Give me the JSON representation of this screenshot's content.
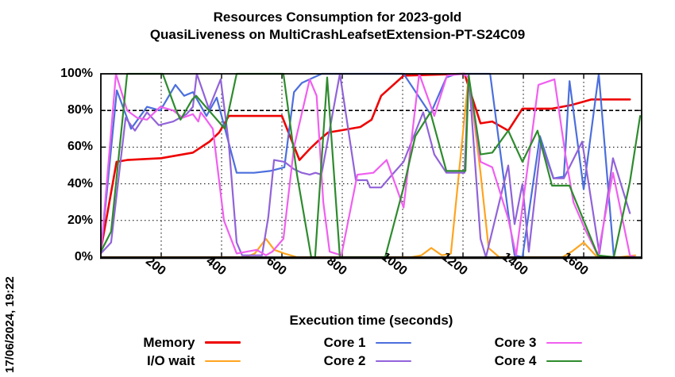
{
  "title": {
    "line1": "Resources Consumption for 2023-gold",
    "line2": "QuasiLiveness on MultiCrashLeafsetExtension-PT-S24C09"
  },
  "timestamp_label": "17/06/2024, 19:22",
  "chart_data": {
    "type": "line",
    "title": "Resources Consumption for 2023-gold — QuasiLiveness on MultiCrashLeafsetExtension-PT-S24C09",
    "xlabel": "Execution time (seconds)",
    "ylabel": "",
    "xlim": [
      0,
      1792
    ],
    "ylim": [
      0,
      100
    ],
    "grid": true,
    "legend_position": "bottom",
    "x_ticks": [
      200,
      400,
      600,
      800,
      1000,
      1200,
      1400,
      1600
    ],
    "y_ticks": [
      {
        "v": 0,
        "label": "0%"
      },
      {
        "v": 20,
        "label": "20%"
      },
      {
        "v": 40,
        "label": "40%"
      },
      {
        "v": 60,
        "label": "60%"
      },
      {
        "v": 80,
        "label": "80%"
      },
      {
        "v": 100,
        "label": "100%"
      }
    ],
    "series": [
      {
        "name": "Memory",
        "color": "#ee0000",
        "width": 2.6,
        "points": [
          [
            0,
            4
          ],
          [
            52,
            52
          ],
          [
            87,
            53
          ],
          [
            200,
            54
          ],
          [
            305,
            57
          ],
          [
            360,
            63
          ],
          [
            392,
            68
          ],
          [
            424,
            77
          ],
          [
            600,
            77
          ],
          [
            658,
            53
          ],
          [
            692,
            59
          ],
          [
            724,
            64
          ],
          [
            753,
            68
          ],
          [
            790,
            69
          ],
          [
            860,
            71
          ],
          [
            897,
            75
          ],
          [
            929,
            88
          ],
          [
            1003,
            99
          ],
          [
            1205,
            100
          ],
          [
            1258,
            73
          ],
          [
            1297,
            74
          ],
          [
            1350,
            69
          ],
          [
            1397,
            81
          ],
          [
            1495,
            81
          ],
          [
            1560,
            83
          ],
          [
            1626,
            86
          ],
          [
            1753,
            86
          ]
        ]
      },
      {
        "name": "I/O wait",
        "color": "#ffa420",
        "width": 2.2,
        "points": [
          [
            0,
            0
          ],
          [
            480,
            0
          ],
          [
            510,
            2
          ],
          [
            547,
            10
          ],
          [
            575,
            4
          ],
          [
            608,
            2
          ],
          [
            650,
            0
          ],
          [
            1030,
            0
          ],
          [
            1062,
            1
          ],
          [
            1095,
            5
          ],
          [
            1130,
            1
          ],
          [
            1160,
            2
          ],
          [
            1219,
            99
          ],
          [
            1258,
            46
          ],
          [
            1285,
            5
          ],
          [
            1320,
            0
          ],
          [
            1530,
            0
          ],
          [
            1560,
            3
          ],
          [
            1600,
            8
          ],
          [
            1645,
            0
          ],
          [
            1720,
            0
          ],
          [
            1771,
            1
          ]
        ]
      },
      {
        "name": "Core 1",
        "color": "#4c6fdd",
        "width": 2.2,
        "points": [
          [
            0,
            2
          ],
          [
            53,
            91
          ],
          [
            100,
            70
          ],
          [
            153,
            82
          ],
          [
            197,
            80
          ],
          [
            247,
            94
          ],
          [
            276,
            88
          ],
          [
            305,
            90
          ],
          [
            350,
            77
          ],
          [
            384,
            87
          ],
          [
            450,
            46
          ],
          [
            508,
            46
          ],
          [
            561,
            47
          ],
          [
            608,
            49
          ],
          [
            640,
            90
          ],
          [
            666,
            95
          ],
          [
            705,
            98
          ],
          [
            732,
            100
          ],
          [
            1003,
            100
          ],
          [
            1092,
            78
          ],
          [
            1145,
            98
          ],
          [
            1179,
            100
          ],
          [
            1290,
            100
          ],
          [
            1350,
            24
          ],
          [
            1371,
            1
          ],
          [
            1397,
            0
          ],
          [
            1455,
            66
          ],
          [
            1500,
            43
          ],
          [
            1534,
            44
          ],
          [
            1553,
            96
          ],
          [
            1600,
            37
          ],
          [
            1650,
            100
          ],
          [
            1700,
            0
          ]
        ]
      },
      {
        "name": "Core 2",
        "color": "#9163d9",
        "width": 2.2,
        "points": [
          [
            0,
            2
          ],
          [
            34,
            8
          ],
          [
            82,
            76
          ],
          [
            113,
            69
          ],
          [
            153,
            79
          ],
          [
            192,
            72
          ],
          [
            240,
            74
          ],
          [
            284,
            78
          ],
          [
            305,
            82
          ],
          [
            318,
            100
          ],
          [
            358,
            81
          ],
          [
            397,
            97
          ],
          [
            424,
            62
          ],
          [
            450,
            8
          ],
          [
            468,
            1
          ],
          [
            534,
            1
          ],
          [
            555,
            22
          ],
          [
            574,
            53
          ],
          [
            608,
            52
          ],
          [
            640,
            48
          ],
          [
            666,
            46
          ],
          [
            692,
            45
          ],
          [
            711,
            46
          ],
          [
            731,
            45
          ],
          [
            792,
            100
          ],
          [
            845,
            42
          ],
          [
            882,
            42
          ],
          [
            892,
            38
          ],
          [
            929,
            38
          ],
          [
            960,
            44
          ],
          [
            1003,
            52
          ],
          [
            1068,
            79
          ],
          [
            1105,
            56
          ],
          [
            1145,
            46
          ],
          [
            1205,
            46
          ],
          [
            1219,
            100
          ],
          [
            1258,
            10
          ],
          [
            1276,
            0
          ],
          [
            1350,
            50
          ],
          [
            1371,
            18
          ],
          [
            1397,
            40
          ],
          [
            1418,
            3
          ],
          [
            1458,
            62
          ],
          [
            1500,
            43
          ],
          [
            1534,
            43
          ],
          [
            1595,
            63
          ],
          [
            1652,
            2
          ],
          [
            1697,
            54
          ],
          [
            1753,
            24
          ]
        ]
      },
      {
        "name": "Core 3",
        "color": "#f05ff0",
        "width": 2.2,
        "points": [
          [
            0,
            2
          ],
          [
            50,
            100
          ],
          [
            87,
            80
          ],
          [
            120,
            76
          ],
          [
            153,
            75
          ],
          [
            197,
            82
          ],
          [
            240,
            80
          ],
          [
            271,
            76
          ],
          [
            305,
            78
          ],
          [
            323,
            74
          ],
          [
            331,
            79
          ],
          [
            345,
            76
          ],
          [
            371,
            70
          ],
          [
            408,
            20
          ],
          [
            450,
            2
          ],
          [
            516,
            4
          ],
          [
            547,
            1
          ],
          [
            568,
            3
          ],
          [
            605,
            10
          ],
          [
            640,
            60
          ],
          [
            692,
            97
          ],
          [
            715,
            88
          ],
          [
            737,
            30
          ],
          [
            758,
            3
          ],
          [
            797,
            1
          ],
          [
            850,
            45
          ],
          [
            903,
            46
          ],
          [
            947,
            53
          ],
          [
            1003,
            27
          ],
          [
            1055,
            100
          ],
          [
            1105,
            77
          ],
          [
            1147,
            99
          ],
          [
            1200,
            100
          ],
          [
            1219,
            98
          ],
          [
            1258,
            52
          ],
          [
            1297,
            49
          ],
          [
            1350,
            21
          ],
          [
            1376,
            1
          ],
          [
            1450,
            94
          ],
          [
            1503,
            97
          ],
          [
            1539,
            56
          ],
          [
            1566,
            30
          ],
          [
            1605,
            15
          ],
          [
            1647,
            1
          ],
          [
            1697,
            46
          ],
          [
            1753,
            1
          ],
          [
            1771,
            0
          ]
        ]
      },
      {
        "name": "Core 4",
        "color": "#2e8b2e",
        "width": 2.2,
        "points": [
          [
            0,
            3
          ],
          [
            34,
            14
          ],
          [
            87,
            100
          ],
          [
            205,
            100
          ],
          [
            247,
            81
          ],
          [
            264,
            75
          ],
          [
            303,
            86
          ],
          [
            316,
            88
          ],
          [
            411,
            70
          ],
          [
            450,
            100
          ],
          [
            605,
            100
          ],
          [
            650,
            45
          ],
          [
            697,
            0
          ],
          [
            710,
            0
          ],
          [
            750,
            98
          ],
          [
            792,
            0
          ],
          [
            942,
            0
          ],
          [
            1003,
            38
          ],
          [
            1042,
            66
          ],
          [
            1092,
            79
          ],
          [
            1145,
            47
          ],
          [
            1208,
            47
          ],
          [
            1219,
            99
          ],
          [
            1258,
            56
          ],
          [
            1297,
            57
          ],
          [
            1350,
            69
          ],
          [
            1397,
            52
          ],
          [
            1447,
            69
          ],
          [
            1495,
            39
          ],
          [
            1553,
            39
          ],
          [
            1600,
            20
          ],
          [
            1647,
            1
          ],
          [
            1700,
            0
          ],
          [
            1753,
            41
          ],
          [
            1787,
            77
          ]
        ]
      }
    ]
  }
}
